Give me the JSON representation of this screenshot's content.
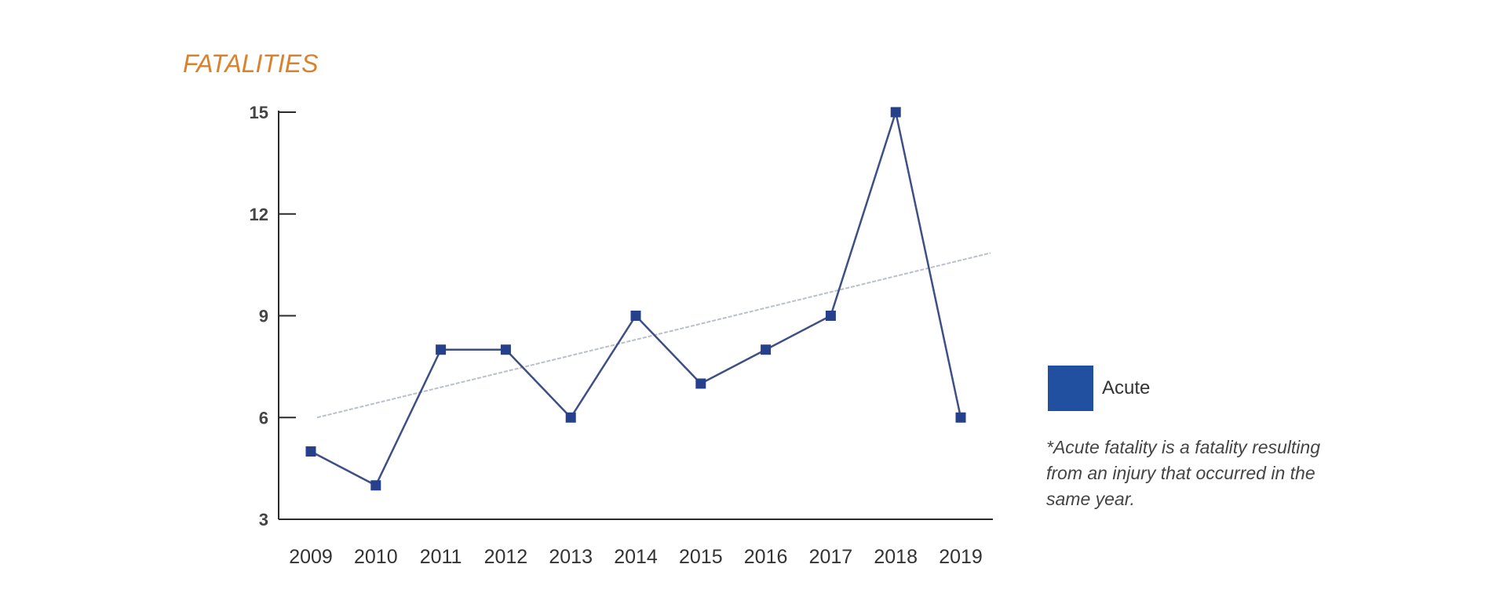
{
  "chart_data": {
    "type": "line",
    "title": "FATALITIES",
    "xlabel": "",
    "ylabel": "",
    "x": [
      "2009",
      "2010",
      "2011",
      "2012",
      "2013",
      "2014",
      "2015",
      "2016",
      "2017",
      "2018",
      "2019"
    ],
    "series": [
      {
        "name": "Acute",
        "values": [
          5,
          4,
          8,
          8,
          6,
          9,
          7,
          8,
          9,
          15,
          6
        ]
      }
    ],
    "trendline": {
      "start": 6.0,
      "end": 10.85
    },
    "ylim": [
      3,
      15
    ],
    "yticks": [
      3,
      6,
      9,
      12,
      15
    ],
    "grid": false,
    "legend_position": "right",
    "footnote": "*Acute fatality is a fatality resulting from an injury that occurred in the same year."
  },
  "colors": {
    "title": "#d9822b",
    "series": "#2150a0",
    "line": "#3d4f85",
    "marker": "#27408b",
    "trend": "#b9bfcc",
    "axis": "#2b2b2b"
  }
}
